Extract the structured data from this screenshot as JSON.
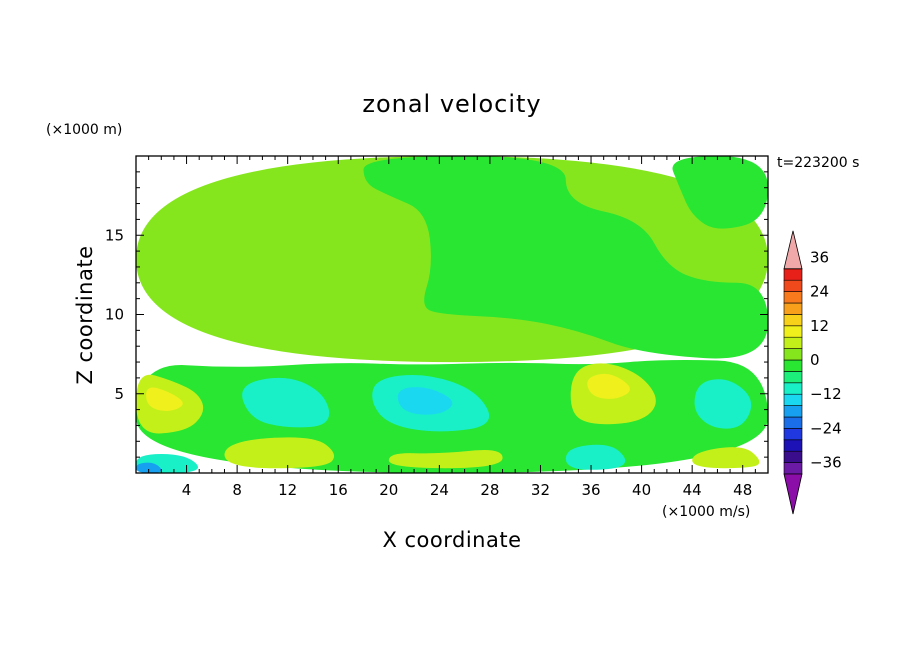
{
  "chart_data": {
    "type": "heatmap",
    "title": "zonal velocity",
    "xlabel": "X coordinate",
    "ylabel": "Z coordinate",
    "x_unit": "(×1000 m/s)",
    "y_unit": "(×1000 m)",
    "time_label": "t=223200 s",
    "xlim": [
      0,
      50
    ],
    "ylim": [
      0,
      20
    ],
    "x_ticks": [
      4,
      8,
      12,
      16,
      20,
      24,
      28,
      32,
      36,
      40,
      44,
      48
    ],
    "y_ticks": [
      5,
      10,
      15
    ],
    "colorbar": {
      "min": -40,
      "max": 40,
      "step": 4,
      "tick_values": [
        36,
        24,
        12,
        0,
        -12,
        -24,
        -36
      ],
      "colors": [
        "#6b1aa6",
        "#3a0d8c",
        "#1c12b5",
        "#1f38e0",
        "#1a6fe8",
        "#17a0ef",
        "#1ad8f0",
        "#19f0c8",
        "#1cf07a",
        "#28e632",
        "#86e61e",
        "#c4f01a",
        "#f0f01c",
        "#f8d21a",
        "#f8a01c",
        "#f87a1c",
        "#f04a1c",
        "#e8201a",
        "#f0a8a8"
      ],
      "under_color": "#8c0ea8",
      "over_color": "#f0a8a8"
    },
    "regions": [
      {
        "name": "upper-layer",
        "value": 2,
        "poly": [
          [
            0,
            20
          ],
          [
            50,
            20
          ],
          [
            50,
            7
          ],
          [
            0,
            7
          ]
        ]
      },
      {
        "name": "slight-negative-east-upper",
        "value": -2,
        "poly": [
          [
            18,
            20
          ],
          [
            34,
            20
          ],
          [
            34,
            17
          ],
          [
            40,
            16
          ],
          [
            42,
            13
          ],
          [
            45,
            12
          ],
          [
            50,
            12
          ],
          [
            50,
            7
          ],
          [
            40,
            7.5
          ],
          [
            35,
            9
          ],
          [
            30,
            9.8
          ],
          [
            24,
            10
          ],
          [
            22.5,
            10.5
          ],
          [
            23.5,
            13
          ],
          [
            23,
            16.5
          ],
          [
            20,
            17.5
          ],
          [
            18,
            18.3
          ]
        ]
      },
      {
        "name": "slight-negative-east-top",
        "value": -2,
        "poly": [
          [
            42,
            20
          ],
          [
            50,
            20
          ],
          [
            50,
            16
          ],
          [
            46,
            15.2
          ],
          [
            44,
            16.2
          ],
          [
            43,
            18
          ]
        ]
      },
      {
        "name": "lower-layer",
        "value": -3,
        "poly": [
          [
            0,
            0
          ],
          [
            50,
            0
          ],
          [
            50,
            7
          ],
          [
            42,
            7.2
          ],
          [
            36,
            6.8
          ],
          [
            30,
            7
          ],
          [
            22,
            6.8
          ],
          [
            16,
            7
          ],
          [
            8,
            6.6
          ],
          [
            0,
            7
          ]
        ]
      },
      {
        "name": "positive-west-surface",
        "value": 7,
        "poly": [
          [
            0,
            6.5
          ],
          [
            3,
            5.8
          ],
          [
            5,
            5
          ],
          [
            5.5,
            3.8
          ],
          [
            4,
            2.6
          ],
          [
            0,
            2.4
          ]
        ]
      },
      {
        "name": "positive-west-core",
        "value": 11,
        "poly": [
          [
            0.8,
            5.6
          ],
          [
            3,
            5
          ],
          [
            4,
            4.3
          ],
          [
            2.5,
            3.8
          ],
          [
            0.8,
            4.2
          ]
        ]
      },
      {
        "name": "positive-surface-band",
        "value": 7,
        "poly": [
          [
            7,
            2
          ],
          [
            14,
            2.4
          ],
          [
            16,
            1.2
          ],
          [
            15,
            0.3
          ],
          [
            7,
            0.3
          ]
        ]
      },
      {
        "name": "positive-mid-surface",
        "value": 7,
        "poly": [
          [
            20,
            0.3
          ],
          [
            29,
            0.3
          ],
          [
            29,
            1.6
          ],
          [
            24,
            1.2
          ],
          [
            20,
            1.3
          ]
        ]
      },
      {
        "name": "positive-east-cell",
        "value": 7,
        "poly": [
          [
            34.5,
            6.5
          ],
          [
            37,
            7.1
          ],
          [
            40,
            6.2
          ],
          [
            41.5,
            4.5
          ],
          [
            40,
            3.2
          ],
          [
            36,
            3
          ],
          [
            34.3,
            3.8
          ]
        ]
      },
      {
        "name": "positive-east-core",
        "value": 11,
        "poly": [
          [
            35.5,
            6
          ],
          [
            37.5,
            6.4
          ],
          [
            39.5,
            5.3
          ],
          [
            38,
            4.6
          ],
          [
            36,
            4.8
          ]
        ]
      },
      {
        "name": "positive-east-surface",
        "value": 7,
        "poly": [
          [
            44,
            1.3
          ],
          [
            48,
            1.8
          ],
          [
            49.5,
            0.8
          ],
          [
            49,
            0.3
          ],
          [
            44,
            0.3
          ]
        ]
      },
      {
        "name": "negative-central-cell",
        "value": -9,
        "poly": [
          [
            19,
            6
          ],
          [
            23,
            6.3
          ],
          [
            27,
            5.2
          ],
          [
            28.5,
            3
          ],
          [
            24,
            2.5
          ],
          [
            20,
            3
          ],
          [
            18.5,
            4.5
          ]
        ]
      },
      {
        "name": "negative-central-core",
        "value": -13,
        "poly": [
          [
            20.5,
            5.3
          ],
          [
            23,
            5.5
          ],
          [
            25.5,
            4.5
          ],
          [
            24,
            3.6
          ],
          [
            21,
            3.8
          ]
        ]
      },
      {
        "name": "negative-west-cell",
        "value": -9,
        "poly": [
          [
            8,
            5.6
          ],
          [
            12,
            6.2
          ],
          [
            15,
            5
          ],
          [
            15.5,
            3
          ],
          [
            12,
            2.8
          ],
          [
            9,
            3.4
          ]
        ]
      },
      {
        "name": "negative-east-cell",
        "value": -9,
        "poly": [
          [
            44.5,
            5.8
          ],
          [
            47,
            6
          ],
          [
            49,
            4.6
          ],
          [
            48,
            2.8
          ],
          [
            45.5,
            2.8
          ],
          [
            44,
            4
          ]
        ]
      },
      {
        "name": "negative-east-surface",
        "value": -9,
        "poly": [
          [
            34,
            1.6
          ],
          [
            37.5,
            1.9
          ],
          [
            39,
            0.8
          ],
          [
            38,
            0.2
          ],
          [
            34,
            0.2
          ]
        ]
      },
      {
        "name": "negative-west-surface",
        "value": -9,
        "poly": [
          [
            0,
            1.2
          ],
          [
            4,
            1.2
          ],
          [
            5.5,
            0
          ],
          [
            0,
            0
          ]
        ]
      },
      {
        "name": "negative-west-surface-core",
        "value": -17,
        "poly": [
          [
            0,
            0.6
          ],
          [
            1.5,
            0.7
          ],
          [
            2.3,
            0
          ],
          [
            0,
            0
          ]
        ]
      }
    ]
  }
}
